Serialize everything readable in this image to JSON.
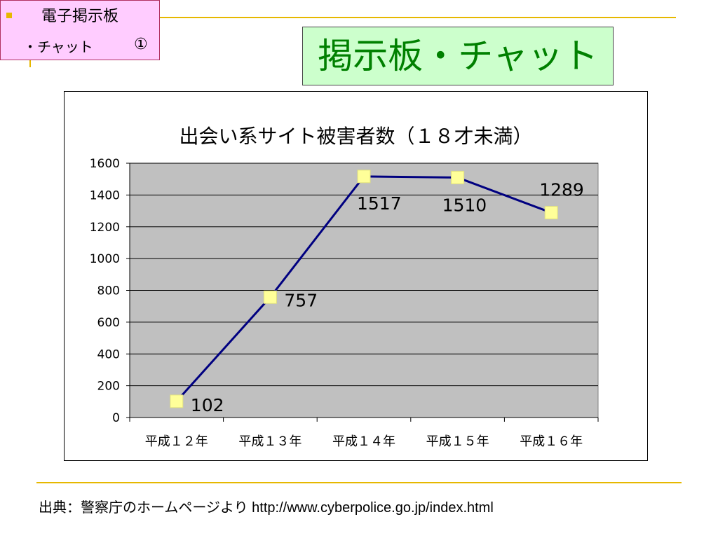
{
  "section": {
    "line1": "電子掲示板",
    "line2": "・チャット",
    "number": "①",
    "bullet_color": "#e6b800"
  },
  "slide_title": "掲示板・チャット",
  "chart_data": {
    "type": "line",
    "title": "出会い系サイト被害者数（１８才未満）",
    "categories": [
      "平成１２年",
      "平成１３年",
      "平成１４年",
      "平成１５年",
      "平成１６年"
    ],
    "values": [
      102,
      757,
      1517,
      1510,
      1289
    ],
    "data_labels": [
      "102",
      "757",
      "1517",
      "1510",
      "1289"
    ],
    "ylim": [
      0,
      1600
    ],
    "yticks": [
      "0",
      "200",
      "400",
      "600",
      "800",
      "1000",
      "1200",
      "1400",
      "1600"
    ],
    "grid": true,
    "legend": "none",
    "colors": {
      "plot_bg": "#c0c0c0",
      "line": "#000080",
      "marker": "#ffff99"
    }
  },
  "source": {
    "label": "出典：警察庁のホームページより",
    "url": "http://www.cyberpolice.go.jp/index.html"
  }
}
